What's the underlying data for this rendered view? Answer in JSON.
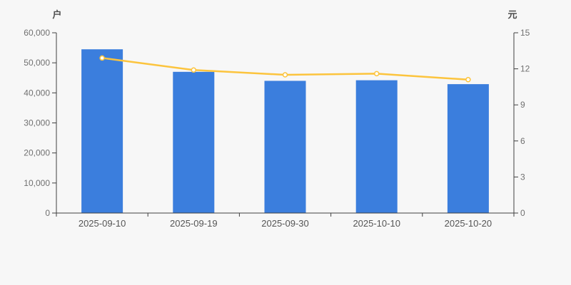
{
  "page": {
    "background": "#f7f7f7"
  },
  "chart_data": {
    "type": "bar",
    "subtype": "bar-line-combo-dual-axis",
    "title": "",
    "legend": "none",
    "grid": "off",
    "categories": [
      "2025-09-10",
      "2025-09-19",
      "2025-09-30",
      "2025-10-10",
      "2025-10-20"
    ],
    "series": [
      {
        "name": "bar-series",
        "type": "bar",
        "y_axis": "left",
        "color": "#3b7edd",
        "values": [
          54500,
          47000,
          44000,
          44200,
          42900
        ]
      },
      {
        "name": "line-series",
        "type": "line",
        "y_axis": "right",
        "color": "#fcc43d",
        "marker_fill": "#ffffff",
        "values": [
          12.9,
          11.9,
          11.5,
          11.6,
          11.1
        ]
      }
    ],
    "y_axis_left": {
      "label": "户",
      "min": 0,
      "max": 60000,
      "tick_interval": 10000,
      "tick_labels": [
        "0",
        "10,000",
        "20,000",
        "30,000",
        "40,000",
        "50,000",
        "60,000"
      ]
    },
    "y_axis_right": {
      "label": "元",
      "min": 0,
      "max": 15,
      "tick_interval": 3,
      "tick_labels": [
        "0",
        "3",
        "6",
        "9",
        "12",
        "15"
      ]
    },
    "style": {
      "axis_color": "#404040",
      "tick_label_color": "#707070",
      "x_label_color": "#555555"
    }
  }
}
